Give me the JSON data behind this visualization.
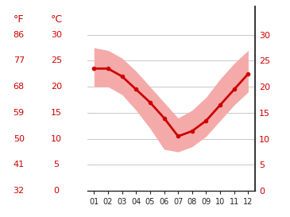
{
  "months": [
    1,
    2,
    3,
    4,
    5,
    6,
    7,
    8,
    9,
    10,
    11,
    12
  ],
  "mean_temp": [
    23.5,
    23.5,
    22.0,
    19.5,
    17.0,
    14.0,
    10.5,
    11.5,
    13.5,
    16.5,
    19.5,
    22.5
  ],
  "max_temp": [
    27.5,
    27.0,
    25.5,
    23.0,
    20.0,
    17.0,
    14.0,
    15.5,
    18.0,
    21.5,
    24.5,
    27.0
  ],
  "min_temp": [
    20.0,
    20.0,
    18.5,
    15.5,
    12.0,
    8.0,
    7.5,
    8.5,
    10.5,
    13.5,
    16.5,
    19.0
  ],
  "line_color": "#cc0000",
  "band_color": "#f5aaaa",
  "bg_color": "#ffffff",
  "label_color": "#cc0000",
  "grid_color": "#c8c8c8",
  "ylim_c": [
    0,
    30
  ],
  "yticks_c": [
    0,
    5,
    10,
    15,
    20,
    25,
    30
  ],
  "yticks_f": [
    32,
    41,
    50,
    59,
    68,
    77,
    86
  ],
  "label_f": "°F",
  "label_c": "°C",
  "month_labels": [
    "01",
    "02",
    "03",
    "04",
    "05",
    "06",
    "07",
    "08",
    "09",
    "10",
    "11",
    "12"
  ]
}
